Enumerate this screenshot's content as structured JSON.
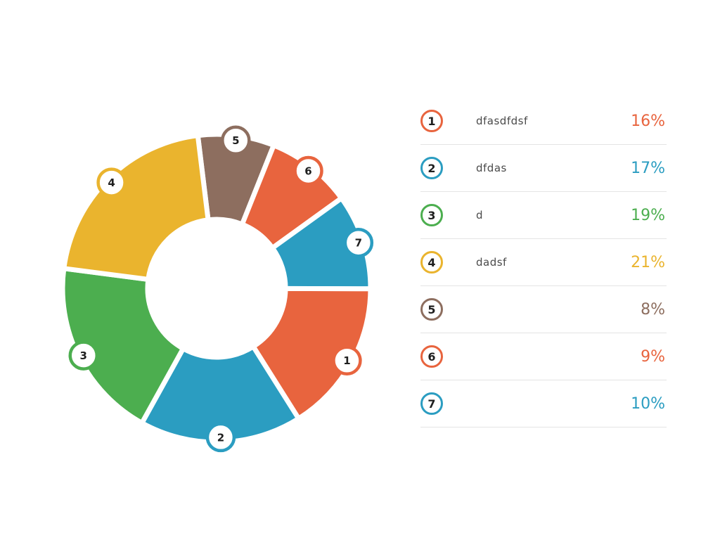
{
  "chart_data": {
    "type": "pie",
    "variant": "donut",
    "title": "",
    "legend_position": "right",
    "start_angle_deg": -7,
    "direction": "clockwise",
    "display_order": [
      5,
      6,
      7,
      1,
      2,
      3,
      4
    ],
    "segments": [
      {
        "id": "1",
        "label": "dfasdfdsf",
        "value": 16,
        "percent_label": "16%",
        "color": "#E8643E"
      },
      {
        "id": "2",
        "label": "dfdas",
        "value": 17,
        "percent_label": "17%",
        "color": "#2B9DC1"
      },
      {
        "id": "3",
        "label": "d",
        "value": 19,
        "percent_label": "19%",
        "color": "#4CAE4F"
      },
      {
        "id": "4",
        "label": "dadsf",
        "value": 21,
        "percent_label": "21%",
        "color": "#EAB42E"
      },
      {
        "id": "5",
        "label": "",
        "value": 8,
        "percent_label": "8%",
        "color": "#8D6E5F"
      },
      {
        "id": "6",
        "label": "",
        "value": 9,
        "percent_label": "9%",
        "color": "#E8643E"
      },
      {
        "id": "7",
        "label": "",
        "value": 10,
        "percent_label": "10%",
        "color": "#2B9DC1"
      }
    ]
  }
}
